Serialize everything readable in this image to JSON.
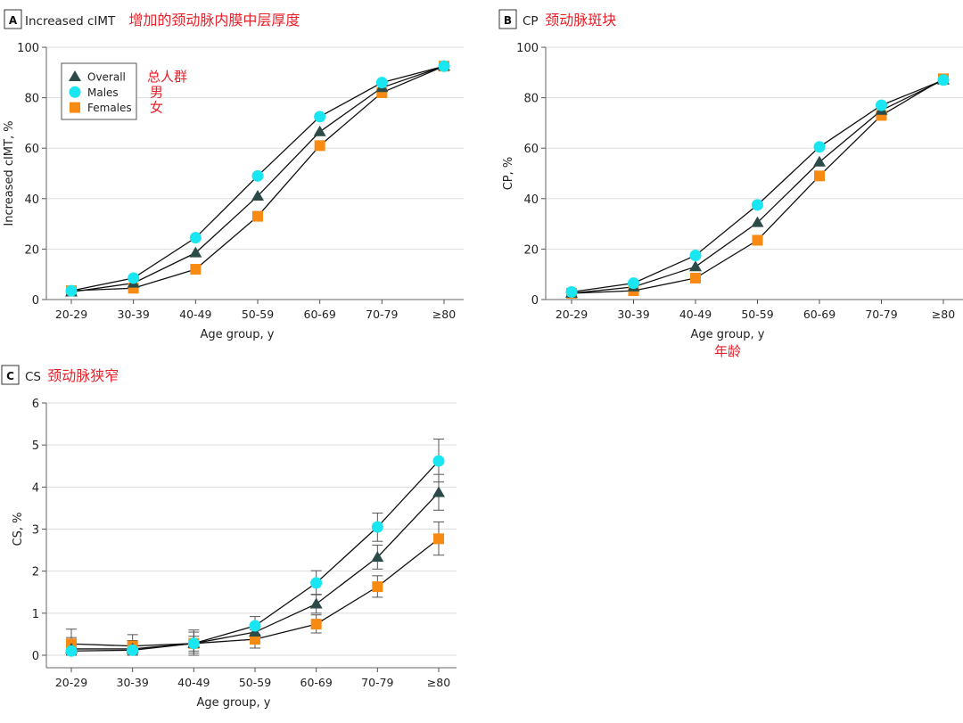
{
  "legend": {
    "items": [
      {
        "name": "Overall",
        "marker": "triangle",
        "color": "#2b4a48",
        "note": "总人群"
      },
      {
        "name": "Males",
        "marker": "circle",
        "color": "#19e6f0",
        "note": "男"
      },
      {
        "name": "Females",
        "marker": "square",
        "color": "#f78a12",
        "note": "女"
      }
    ],
    "placement": "top-left (panel A)"
  },
  "annotation_color": "#e8202a",
  "chart_data": [
    {
      "type": "line",
      "panel": "A",
      "title": "Increased cIMT",
      "title_note": "增加的颈动脉内膜中层厚度",
      "xlabel": "Age group, y",
      "ylabel": "Increased cIMT, %",
      "categories": [
        "20-29",
        "30-39",
        "40-49",
        "50-59",
        "60-69",
        "70-79",
        "≥80"
      ],
      "ylim": [
        0,
        100
      ],
      "yticks": [
        0,
        20,
        40,
        60,
        80,
        100
      ],
      "grid": true,
      "series": [
        {
          "name": "Overall",
          "values": [
            3,
            6.5,
            18.5,
            41,
            66.5,
            84,
            92.5
          ]
        },
        {
          "name": "Males",
          "values": [
            3.5,
            8.5,
            24.5,
            49,
            72.5,
            86,
            92.5
          ]
        },
        {
          "name": "Females",
          "values": [
            3.5,
            4.5,
            12,
            33,
            61,
            82,
            92.5
          ]
        }
      ]
    },
    {
      "type": "line",
      "panel": "B",
      "title": "CP",
      "title_note": "颈动脉斑块",
      "xlabel": "Age group, y",
      "xlabel_note": "年龄",
      "ylabel": "CP, %",
      "categories": [
        "20-29",
        "30-39",
        "40-49",
        "50-59",
        "60-69",
        "70-79",
        "≥80"
      ],
      "ylim": [
        0,
        100
      ],
      "yticks": [
        0,
        20,
        40,
        60,
        80,
        100
      ],
      "grid": true,
      "series": [
        {
          "name": "Overall",
          "values": [
            2.5,
            5,
            13,
            30.5,
            54.5,
            75,
            87
          ]
        },
        {
          "name": "Males",
          "values": [
            3,
            6.5,
            17.5,
            37.5,
            60.5,
            77,
            87
          ]
        },
        {
          "name": "Females",
          "values": [
            2.5,
            3.5,
            8.5,
            23.5,
            49,
            73,
            87.5
          ]
        }
      ]
    },
    {
      "type": "line",
      "panel": "C",
      "title": "CS",
      "title_note": "颈动脉狭窄",
      "xlabel": "Age group, y",
      "ylabel": "CS, %",
      "categories": [
        "20-29",
        "30-39",
        "40-49",
        "50-59",
        "60-69",
        "70-79",
        "≥80"
      ],
      "ylim": [
        -0.3,
        6
      ],
      "yticks": [
        0,
        1,
        2,
        3,
        4,
        5,
        6
      ],
      "grid": true,
      "series": [
        {
          "name": "Overall",
          "values": [
            0.15,
            0.15,
            0.28,
            0.55,
            1.22,
            2.33,
            3.87
          ],
          "ci": [
            [
              0.02,
              0.3
            ],
            [
              0.02,
              0.28
            ],
            [
              0.1,
              0.45
            ],
            [
              0.4,
              0.72
            ],
            [
              1.0,
              1.44
            ],
            [
              2.05,
              2.62
            ],
            [
              3.45,
              4.3
            ]
          ]
        },
        {
          "name": "Males",
          "values": [
            0.1,
            0.12,
            0.28,
            0.7,
            1.72,
            3.05,
            4.62
          ],
          "ci": [
            [
              0,
              0.42
            ],
            [
              0,
              0.35
            ],
            [
              0.05,
              0.55
            ],
            [
              0.5,
              0.92
            ],
            [
              1.45,
              2.01
            ],
            [
              2.71,
              3.38
            ],
            [
              4.12,
              5.14
            ]
          ]
        },
        {
          "name": "Females",
          "values": [
            0.27,
            0.22,
            0.28,
            0.38,
            0.74,
            1.63,
            2.77
          ],
          "ci": [
            [
              0.05,
              0.62
            ],
            [
              0.02,
              0.49
            ],
            [
              0,
              0.6
            ],
            [
              0.17,
              0.6
            ],
            [
              0.53,
              0.96
            ],
            [
              1.38,
              1.89
            ],
            [
              2.38,
              3.17
            ]
          ]
        }
      ]
    }
  ]
}
